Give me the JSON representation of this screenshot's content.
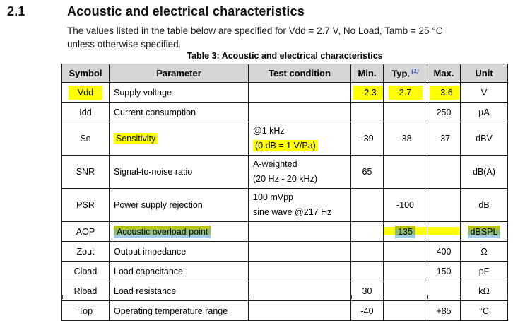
{
  "document": {
    "section_number": "2.1",
    "section_title": "Acoustic and electrical characteristics",
    "intro_lines": [
      "The values listed in the table below are specified for Vdd = 2.7 V, No Load, Tamb = 25 °C",
      "unless otherwise specified."
    ],
    "table_caption": "Table 3: Acoustic and electrical characteristics"
  },
  "table": {
    "headers": [
      {
        "label": "Symbol"
      },
      {
        "label": "Parameter"
      },
      {
        "label": "Test condition"
      },
      {
        "label": "Min."
      },
      {
        "label": "Typ.",
        "footnote": "(1)"
      },
      {
        "label": "Max."
      },
      {
        "label": "Unit"
      }
    ],
    "rows": [
      {
        "symbol": "Vdd",
        "parameter": "Supply voltage",
        "test_condition": [],
        "min": "2.3",
        "typ": "2.7",
        "max": "3.6",
        "unit": "V",
        "highlights": {
          "symbol": "yellow",
          "min": "yellow",
          "typ": "yellow",
          "max": "yellow"
        }
      },
      {
        "symbol": "Idd",
        "parameter": "Current consumption",
        "test_condition": [],
        "min": "",
        "typ": "",
        "max": "250",
        "unit": "µA"
      },
      {
        "symbol": "So",
        "parameter": "Sensitivity",
        "test_condition": [
          "@1 kHz",
          "(0 dB = 1 V/Pa)"
        ],
        "min": "-39",
        "typ": "-38",
        "max": "-37",
        "unit": "dBV",
        "highlights": {
          "parameter": "yellow",
          "test1": "yellow"
        }
      },
      {
        "symbol": "SNR",
        "parameter": "Signal-to-noise ratio",
        "test_condition": [
          "A-weighted",
          "(20 Hz - 20 kHz)"
        ],
        "min": "65",
        "typ": "",
        "max": "",
        "unit": "dB(A)"
      },
      {
        "symbol": "PSR",
        "parameter": "Power supply rejection",
        "test_condition": [
          "100 mVpp",
          "sine wave @217 Hz"
        ],
        "min": "",
        "typ": "-100",
        "max": "",
        "unit": "dB"
      },
      {
        "symbol": "AOP",
        "parameter": "Acoustic overload point",
        "test_condition": [],
        "min": "",
        "typ": "135",
        "max": "",
        "unit": "dBSPL",
        "highlights": {
          "parameter": "green",
          "typ": "green-band",
          "max": "band",
          "unit": "green"
        }
      },
      {
        "symbol": "Zout",
        "parameter": "Output impedance",
        "test_condition": [],
        "min": "",
        "typ": "",
        "max": "400",
        "unit": "Ω"
      },
      {
        "symbol": "Cload",
        "parameter": "Load capacitance",
        "test_condition": [],
        "min": "",
        "typ": "",
        "max": "150",
        "unit": "pF"
      },
      {
        "symbol": "Rload",
        "parameter": "Load resistance",
        "test_condition": [],
        "min": "30",
        "typ": "",
        "max": "",
        "unit": "kΩ"
      },
      {
        "symbol": "Top",
        "parameter": "Operating temperature range",
        "test_condition": [],
        "min": "-40",
        "typ": "",
        "max": "+85",
        "unit": "°C"
      }
    ]
  },
  "colors": {
    "highlight_yellow": "#ffff00",
    "highlight_green_mix": "#8cbe77",
    "highlight_olive": "#b4c509",
    "selection_blue": "#a6cbe6",
    "header_bg": "#d6d6d6",
    "footnote_blue": "#3344bb",
    "border": "#1a1a1a"
  }
}
